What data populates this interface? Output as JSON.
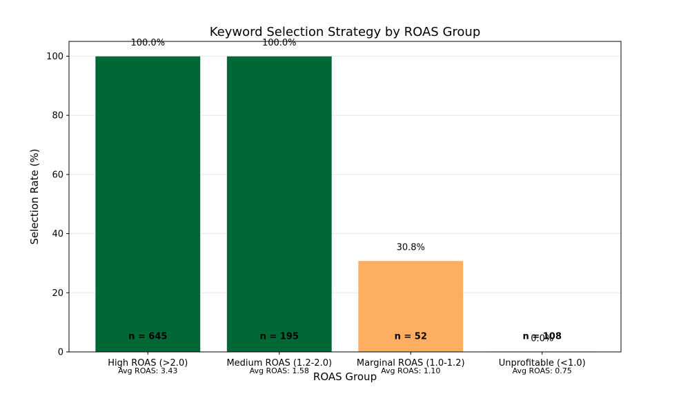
{
  "chart_data": {
    "type": "bar",
    "title": "Keyword Selection Strategy by ROAS Group",
    "xlabel": "ROAS Group",
    "ylabel": "Selection Rate (%)",
    "ylim": [
      0,
      105
    ],
    "yticks": [
      0,
      20,
      40,
      60,
      80,
      100
    ],
    "grid": "y",
    "categories": [
      "High ROAS (>2.0)",
      "Medium ROAS (1.2-2.0)",
      "Marginal ROAS (1.0-1.2)",
      "Unprofitable (<1.0)"
    ],
    "values": [
      100.0,
      100.0,
      30.8,
      0.0
    ],
    "data_labels": [
      "100.0%",
      "100.0%",
      "30.8%",
      "0.0%"
    ],
    "counts": [
      "n = 645",
      "n = 195",
      "n = 52",
      "n = 108"
    ],
    "avg_roas": [
      "Avg ROAS: 3.43",
      "Avg ROAS: 1.58",
      "Avg ROAS: 1.10",
      "Avg ROAS: 0.75"
    ],
    "colors": [
      "#006837",
      "#006837",
      "#fdae61",
      "#a50026"
    ]
  }
}
